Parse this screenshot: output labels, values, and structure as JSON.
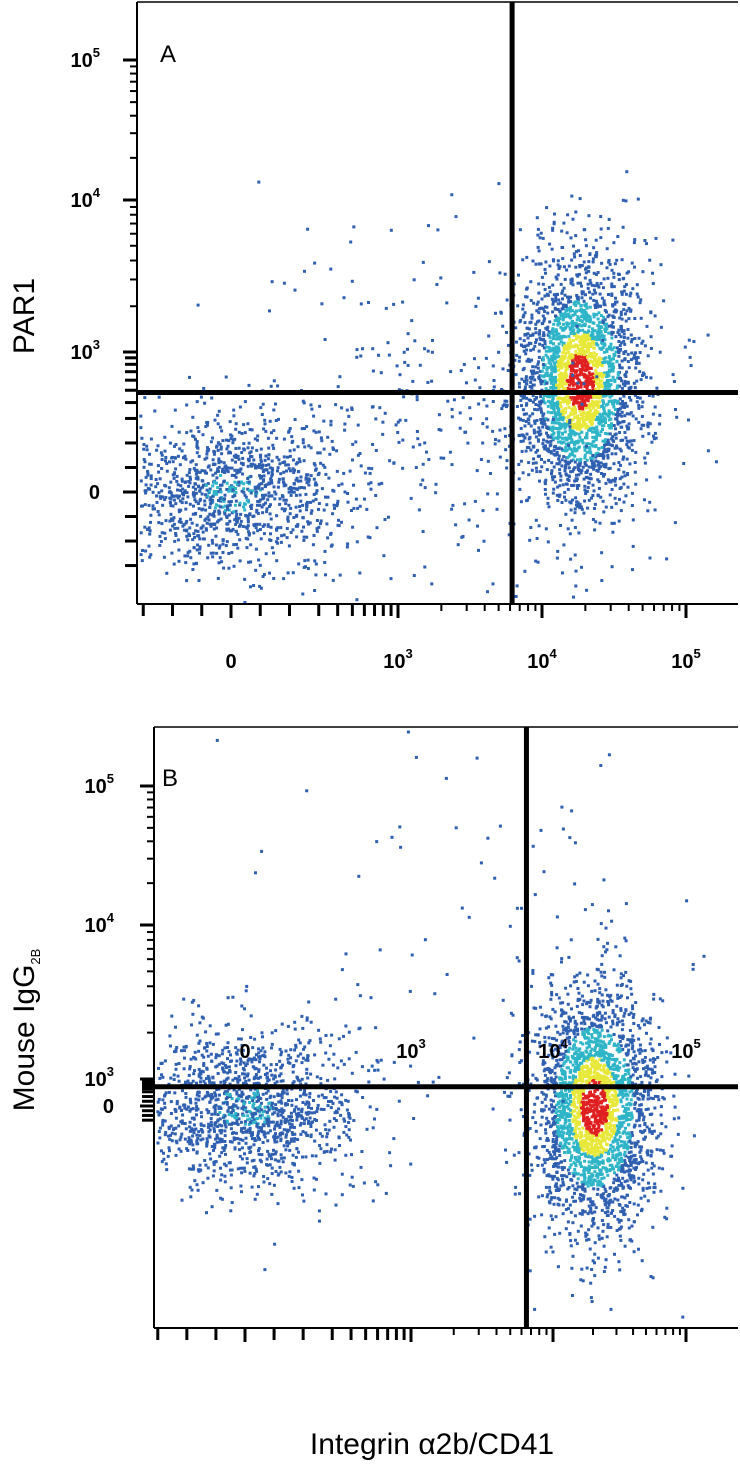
{
  "chart_data": [
    {
      "type": "scatter",
      "subtype": "flow cytometry density dot plot (biexponential axes)",
      "panel_label": "A",
      "xlabel": "",
      "ylabel": "PAR1",
      "x_scale": "biexponential",
      "y_scale": "biexponential",
      "x_ticks": [
        {
          "value": 0,
          "label": "0"
        },
        {
          "value": 1000,
          "label": "10",
          "exp": "3"
        },
        {
          "value": 10000,
          "label": "10",
          "exp": "4"
        },
        {
          "value": 100000,
          "label": "10",
          "exp": "5"
        }
      ],
      "y_ticks": [
        {
          "value": 0,
          "label": "0"
        },
        {
          "value": 1000,
          "label": "10",
          "exp": "3"
        },
        {
          "value": 10000,
          "label": "10",
          "exp": "4"
        },
        {
          "value": 100000,
          "label": "10",
          "exp": "5"
        }
      ],
      "quadrant_gate": {
        "x": 6200,
        "y": 480
      },
      "populations": [
        {
          "name": "",
          "center": {
            "x": 0,
            "y": 0
          },
          "spread": "broad",
          "events": 1200,
          "peak_color": "cyan-green"
        },
        {
          "name": "",
          "center": {
            "x": 18000,
            "y": 600
          },
          "spread": "dense",
          "events": 2600,
          "peak_color": "red"
        },
        {
          "name": "",
          "center": {
            "x": 3000,
            "y": 300
          },
          "spread": "sparse bridge",
          "events": 350,
          "peak_color": "blue"
        }
      ],
      "colors": {
        "low": "#2f5fb0",
        "mid": "#2fb5c8",
        "high": "#e8e83a",
        "peak": "#e02020"
      }
    },
    {
      "type": "scatter",
      "subtype": "flow cytometry density dot plot (biexponential axes)",
      "panel_label": "B",
      "xlabel": "Integrin α2b/CD41",
      "ylabel": "Mouse IgG",
      "ylabel_sub": "2B",
      "x_scale": "biexponential",
      "y_scale": "biexponential",
      "x_ticks": [
        {
          "value": 0,
          "label": "0"
        },
        {
          "value": 1000,
          "label": "10",
          "exp": "3"
        },
        {
          "value": 10000,
          "label": "10",
          "exp": "4"
        },
        {
          "value": 100000,
          "label": "10",
          "exp": "5"
        }
      ],
      "y_ticks": [
        {
          "value": 0,
          "label": "0"
        },
        {
          "value": 1000,
          "label": "10",
          "exp": "3"
        },
        {
          "value": 10000,
          "label": "10",
          "exp": "4"
        },
        {
          "value": 100000,
          "label": "10",
          "exp": "5"
        }
      ],
      "quadrant_gate": {
        "x": 6500,
        "y": 480
      },
      "populations": [
        {
          "name": "",
          "center": {
            "x": 0,
            "y": 0
          },
          "spread": "broad",
          "events": 1400,
          "peak_color": "cyan-green"
        },
        {
          "name": "",
          "center": {
            "x": 20000,
            "y": 0
          },
          "spread": "dense",
          "events": 2600,
          "peak_color": "red"
        },
        {
          "name": "",
          "center": {
            "x": 2000,
            "y": 20000
          },
          "spread": "sparse",
          "events": 60,
          "peak_color": "blue"
        }
      ],
      "colors": {
        "low": "#2f5fb0",
        "mid": "#2fb5c8",
        "high": "#e8e83a",
        "peak": "#e02020"
      }
    }
  ]
}
